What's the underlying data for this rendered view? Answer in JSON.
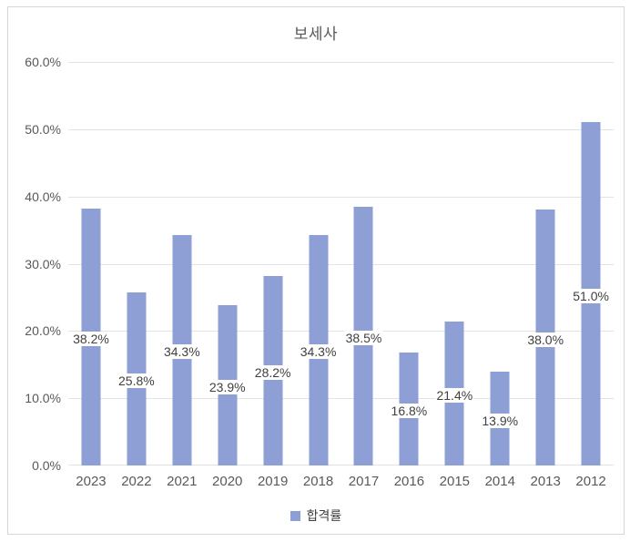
{
  "chart_data": {
    "type": "bar",
    "title": "보세사",
    "series": [
      {
        "name": "합격률",
        "values": [
          38.2,
          25.8,
          34.3,
          23.9,
          28.2,
          34.3,
          38.5,
          16.8,
          21.4,
          13.9,
          38.0,
          51.0
        ]
      }
    ],
    "categories": [
      "2023",
      "2022",
      "2021",
      "2020",
      "2019",
      "2018",
      "2017",
      "2016",
      "2015",
      "2014",
      "2013",
      "2012"
    ],
    "value_labels": [
      "38.2%",
      "25.8%",
      "34.3%",
      "23.9%",
      "28.2%",
      "34.3%",
      "38.5%",
      "16.8%",
      "21.4%",
      "13.9%",
      "38.0%",
      "51.0%"
    ],
    "xlabel": "",
    "ylabel": "",
    "ylim": [
      0,
      60
    ],
    "ytick_step": 10,
    "ytick_labels": [
      "0.0%",
      "10.0%",
      "20.0%",
      "30.0%",
      "40.0%",
      "50.0%",
      "60.0%"
    ],
    "grid": true,
    "legend_position": "bottom",
    "legend": {
      "label": "합격률"
    },
    "colors": {
      "bar": "#8d9fd4",
      "axis_text": "#595959",
      "data_label_text": "#404040",
      "gridline": "#e3e3e3",
      "card_border": "#d6d6d6",
      "background": "#ffffff"
    }
  }
}
